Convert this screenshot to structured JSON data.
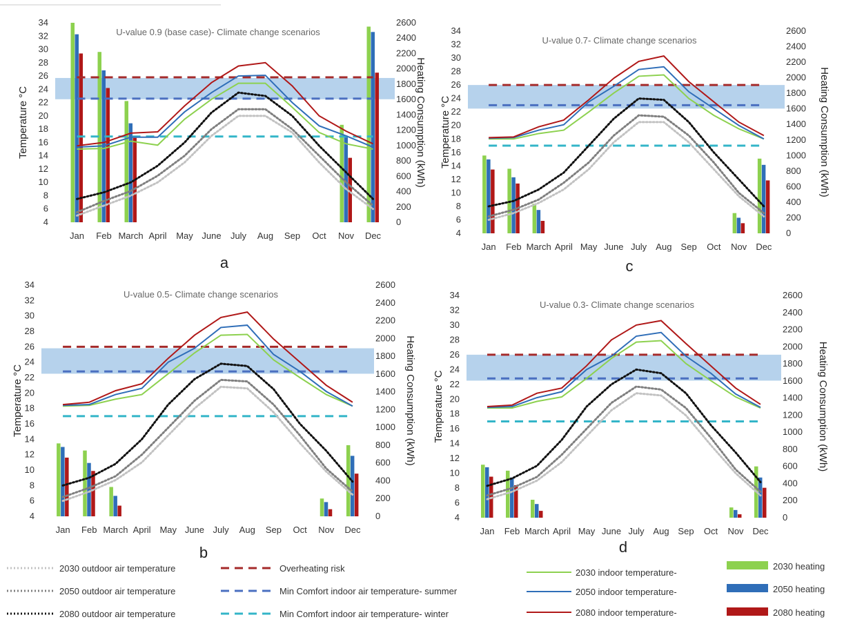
{
  "colors": {
    "green": "#8dd14f",
    "blue": "#2f6eb8",
    "red": "#b01818",
    "band": "#9dc3e6",
    "overheating": "#a52a2a",
    "comfort_summer": "#4a6fc0",
    "comfort_winter": "#33b5c8",
    "outdoor_2030": "#c2c2c2",
    "outdoor_2050": "#7f7f7f",
    "outdoor_2080": "#111111"
  },
  "legend": {
    "items": [
      {
        "label": "2030 outdoor air temperature",
        "key": "o30"
      },
      {
        "label": "2050 outdoor air temperature",
        "key": "o50"
      },
      {
        "label": "2080 outdoor air temperature",
        "key": "o80"
      },
      {
        "label": "Overheating risk",
        "key": "oh"
      },
      {
        "label": "Min Comfort indoor air temperature- summer",
        "key": "cs"
      },
      {
        "label": "Min Comfort indoor air temperature- winter",
        "key": "cw"
      },
      {
        "label": "2030  indoor temperature-",
        "key": "i30"
      },
      {
        "label": "2050  indoor temperature-",
        "key": "i50"
      },
      {
        "label": "2080   indoor temperature-",
        "key": "i80"
      },
      {
        "label": "2030 heating",
        "key": "h30"
      },
      {
        "label": "2050  heating",
        "key": "h50"
      },
      {
        "label": "2080  heating",
        "key": "h80"
      }
    ]
  },
  "chart_data": [
    {
      "type": "bar",
      "panel": "a",
      "title": "U-value 0.9  (base case)- Climate change scenarios",
      "ylabel": "Temperature °C",
      "y2label": "Heating Consumption (kWh)",
      "categories": [
        "Jan",
        "Feb",
        "March",
        "April",
        "May",
        "June",
        "July",
        "Aug",
        "Sep",
        "Oct",
        "Nov",
        "Dec"
      ],
      "y_ticks": [
        4,
        6,
        8,
        10,
        12,
        14,
        16,
        18,
        20,
        22,
        24,
        26,
        28,
        30,
        32,
        34
      ],
      "ylim": [
        4,
        34
      ],
      "y2_ticks": [
        0,
        200,
        400,
        600,
        800,
        1000,
        1200,
        1400,
        1600,
        1800,
        2000,
        2200,
        2400,
        2600
      ],
      "y2lim": [
        0,
        2600
      ],
      "comfort_band": [
        22.5,
        25.7
      ],
      "overheating_risk": 25.8,
      "min_comfort_summer": 22.6,
      "min_comfort_winter": 16.9,
      "heating": [
        {
          "name": "2030 heating",
          "values": [
            2600,
            2220,
            1580,
            0,
            0,
            0,
            0,
            0,
            0,
            0,
            1270,
            2550
          ]
        },
        {
          "name": "2050 heating",
          "values": [
            2450,
            1980,
            1290,
            0,
            0,
            0,
            0,
            0,
            0,
            0,
            1120,
            2480
          ]
        },
        {
          "name": "2080 heating",
          "values": [
            2200,
            1750,
            1100,
            0,
            0,
            0,
            0,
            0,
            0,
            0,
            840,
            1950
          ]
        }
      ],
      "indoor": [
        {
          "name": "2030  indoor temperature-",
          "values": [
            15.0,
            15.1,
            16.2,
            15.6,
            19.5,
            22.5,
            24.9,
            24.9,
            21.3,
            17.5,
            15.8,
            15.0
          ]
        },
        {
          "name": "2050  indoor temperature-",
          "values": [
            15.3,
            15.5,
            16.8,
            16.8,
            20.6,
            23.5,
            26.0,
            26.1,
            22.0,
            18.5,
            17.0,
            15.3
          ]
        },
        {
          "name": "2080   indoor temperature-",
          "values": [
            15.5,
            16.0,
            17.4,
            17.6,
            21.5,
            25.0,
            27.5,
            28.0,
            24.5,
            20.0,
            17.7,
            15.8
          ]
        }
      ],
      "outdoor": [
        {
          "name": "2030 outdoor air temperature",
          "values": [
            5.0,
            6.5,
            8.0,
            10.0,
            13.0,
            17.0,
            20.0,
            20.0,
            17.5,
            13.0,
            9.0,
            6.0
          ]
        },
        {
          "name": "2050 outdoor air temperature",
          "values": [
            5.5,
            7.2,
            8.7,
            11.0,
            14.0,
            18.0,
            21.0,
            21.0,
            18.0,
            14.0,
            10.0,
            6.5
          ]
        },
        {
          "name": "2080 outdoor air temperature",
          "values": [
            7.5,
            8.5,
            10.0,
            12.5,
            16.0,
            20.5,
            23.5,
            23.0,
            20.0,
            15.5,
            11.5,
            7.5
          ]
        }
      ]
    },
    {
      "type": "bar",
      "panel": "c",
      "title": "U-value 0.7- Climate change scenarios",
      "ylabel": "Temperature °C",
      "y2label": "Heating Consumption (kWh)",
      "categories": [
        "Jan",
        "Feb",
        "March",
        "April",
        "May",
        "June",
        "July",
        "Aug",
        "Sep",
        "Oct",
        "Nov",
        "Dec"
      ],
      "y_ticks": [
        4,
        6,
        8,
        10,
        12,
        14,
        16,
        18,
        20,
        22,
        24,
        26,
        28,
        30,
        32,
        34
      ],
      "ylim": [
        4,
        34
      ],
      "y2_ticks": [
        0,
        200,
        400,
        600,
        800,
        1000,
        1200,
        1400,
        1600,
        1800,
        2000,
        2200,
        2400,
        2600
      ],
      "y2lim": [
        0,
        2600
      ],
      "comfort_band": [
        22.5,
        26.0
      ],
      "overheating_risk": 26.0,
      "min_comfort_summer": 23.0,
      "min_comfort_winter": 17.0,
      "heating": [
        {
          "name": "2030 heating",
          "values": [
            1000,
            830,
            380,
            0,
            0,
            0,
            0,
            0,
            0,
            0,
            260,
            960
          ]
        },
        {
          "name": "2050 heating",
          "values": [
            950,
            720,
            300,
            0,
            0,
            0,
            0,
            0,
            0,
            0,
            200,
            880
          ]
        },
        {
          "name": "2080 heating",
          "values": [
            820,
            640,
            160,
            0,
            0,
            0,
            0,
            0,
            0,
            0,
            130,
            680
          ]
        }
      ],
      "indoor": [
        {
          "name": "2030  indoor temperature-",
          "values": [
            18.0,
            18.0,
            18.8,
            19.3,
            22.0,
            24.8,
            27.3,
            27.5,
            24.0,
            21.5,
            19.5,
            18.0
          ]
        },
        {
          "name": "2050  indoor temperature-",
          "values": [
            18.1,
            18.2,
            19.3,
            20.1,
            23.5,
            25.8,
            28.3,
            28.7,
            25.0,
            22.5,
            20.0,
            18.0
          ]
        },
        {
          "name": "2080   indoor temperature-",
          "values": [
            18.2,
            18.3,
            19.8,
            20.8,
            23.8,
            27.0,
            29.5,
            30.3,
            26.5,
            23.5,
            20.5,
            18.5
          ]
        }
      ],
      "outdoor": [
        {
          "name": "2030 outdoor air temperature",
          "values": [
            6.0,
            7.0,
            8.5,
            10.5,
            13.5,
            17.5,
            20.5,
            20.5,
            17.5,
            13.5,
            9.5,
            6.5
          ]
        },
        {
          "name": "2050 outdoor air temperature",
          "values": [
            6.5,
            7.5,
            9.0,
            11.5,
            14.5,
            18.5,
            21.5,
            21.3,
            18.5,
            14.5,
            10.0,
            7.0
          ]
        },
        {
          "name": "2080 outdoor air temperature",
          "values": [
            8.0,
            8.8,
            10.5,
            13.0,
            17.0,
            21.0,
            24.0,
            23.8,
            20.5,
            16.0,
            12.0,
            8.0
          ]
        }
      ]
    },
    {
      "type": "bar",
      "panel": "b",
      "title": "U-value 0.5- Climate change scenarios",
      "ylabel": "Temperature °C",
      "y2label": "Heating Consumption (kWh)",
      "categories": [
        "Jan",
        "Feb",
        "March",
        "April",
        "May",
        "June",
        "July",
        "Aug",
        "Sep",
        "Oct",
        "Nov",
        "Dec"
      ],
      "y_ticks": [
        4,
        6,
        8,
        10,
        12,
        14,
        16,
        18,
        20,
        22,
        24,
        26,
        28,
        30,
        32,
        34
      ],
      "ylim": [
        4,
        34
      ],
      "y2_ticks": [
        0,
        200,
        400,
        600,
        800,
        1000,
        1200,
        1400,
        1600,
        1800,
        2000,
        2200,
        2400,
        2600
      ],
      "y2lim": [
        0,
        2600
      ],
      "comfort_band": [
        22.5,
        25.8
      ],
      "overheating_risk": 26.0,
      "min_comfort_summer": 22.8,
      "min_comfort_winter": 17.0,
      "heating": [
        {
          "name": "2030 heating",
          "values": [
            820,
            740,
            330,
            0,
            0,
            0,
            0,
            0,
            0,
            0,
            200,
            800
          ]
        },
        {
          "name": "2050 heating",
          "values": [
            780,
            600,
            230,
            0,
            0,
            0,
            0,
            0,
            0,
            0,
            160,
            680
          ]
        },
        {
          "name": "2080 heating",
          "values": [
            660,
            510,
            120,
            0,
            0,
            0,
            0,
            0,
            0,
            0,
            80,
            480
          ]
        }
      ],
      "indoor": [
        {
          "name": "2030  indoor temperature-",
          "values": [
            18.3,
            18.4,
            19.2,
            19.8,
            22.5,
            25.2,
            27.5,
            27.6,
            24.3,
            22.0,
            19.8,
            18.3
          ]
        },
        {
          "name": "2050  indoor temperature-",
          "values": [
            18.4,
            18.5,
            19.8,
            20.6,
            24.0,
            25.8,
            28.5,
            28.8,
            25.0,
            22.8,
            20.2,
            18.3
          ]
        },
        {
          "name": "2080   indoor temperature-",
          "values": [
            18.5,
            18.8,
            20.3,
            21.2,
            24.5,
            27.5,
            29.8,
            30.5,
            27.0,
            24.0,
            21.0,
            18.8
          ]
        }
      ],
      "outdoor": [
        {
          "name": "2030 outdoor air temperature",
          "values": [
            6.0,
            7.2,
            8.7,
            11.0,
            14.5,
            18.0,
            20.8,
            20.6,
            17.5,
            13.5,
            9.8,
            6.8
          ]
        },
        {
          "name": "2050 outdoor air temperature",
          "values": [
            6.5,
            7.7,
            9.2,
            12.0,
            15.5,
            19.0,
            21.7,
            21.5,
            18.5,
            14.5,
            10.2,
            7.2
          ]
        },
        {
          "name": "2080 outdoor air temperature",
          "values": [
            8.0,
            9.0,
            10.8,
            14.0,
            18.5,
            21.8,
            23.8,
            23.5,
            20.5,
            16.0,
            12.5,
            8.5
          ]
        }
      ]
    },
    {
      "type": "bar",
      "panel": "d",
      "title": "U-value 0.3- Climate change scenarios",
      "ylabel": "Temperature °C",
      "y2label": "Heating Consumption (kWh)",
      "categories": [
        "Jan",
        "Feb",
        "March",
        "April",
        "May",
        "June",
        "July",
        "Aug",
        "Sep",
        "Oct",
        "Nov",
        "Dec"
      ],
      "y_ticks": [
        4,
        6,
        8,
        10,
        12,
        14,
        16,
        18,
        20,
        22,
        24,
        26,
        28,
        30,
        32,
        34
      ],
      "ylim": [
        4,
        34
      ],
      "y2_ticks": [
        0,
        200,
        400,
        600,
        800,
        1000,
        1200,
        1400,
        1600,
        1800,
        2000,
        2200,
        2400,
        2600
      ],
      "y2lim": [
        0,
        2600
      ],
      "comfort_band": [
        22.5,
        26.0
      ],
      "overheating_risk": 26.0,
      "min_comfort_summer": 22.8,
      "min_comfort_winter": 17.0,
      "heating": [
        {
          "name": "2030 heating",
          "values": [
            620,
            550,
            210,
            0,
            0,
            0,
            0,
            0,
            0,
            0,
            120,
            600
          ]
        },
        {
          "name": "2050 heating",
          "values": [
            590,
            470,
            160,
            0,
            0,
            0,
            0,
            0,
            0,
            0,
            90,
            470
          ]
        },
        {
          "name": "2080 heating",
          "values": [
            480,
            380,
            80,
            0,
            0,
            0,
            0,
            0,
            0,
            0,
            40,
            350
          ]
        }
      ],
      "indoor": [
        {
          "name": "2030  indoor temperature-",
          "values": [
            18.8,
            18.8,
            19.7,
            20.3,
            22.8,
            25.5,
            27.7,
            27.9,
            24.8,
            22.5,
            20.3,
            18.8
          ]
        },
        {
          "name": "2050  indoor temperature-",
          "values": [
            18.9,
            19.0,
            20.2,
            21.0,
            24.0,
            25.8,
            28.5,
            29.0,
            25.8,
            23.5,
            20.7,
            18.9
          ]
        },
        {
          "name": "2080   indoor temperature-",
          "values": [
            19.0,
            19.2,
            20.8,
            21.5,
            24.5,
            28.0,
            30.0,
            30.6,
            27.5,
            24.5,
            21.5,
            19.3
          ]
        }
      ],
      "outdoor": [
        {
          "name": "2030 outdoor air temperature",
          "values": [
            6.5,
            7.5,
            9.0,
            11.5,
            15.0,
            18.5,
            20.8,
            20.5,
            17.8,
            13.8,
            10.0,
            7.0
          ]
        },
        {
          "name": "2050 outdoor air temperature",
          "values": [
            7.0,
            8.0,
            9.5,
            12.5,
            16.0,
            19.5,
            21.7,
            21.3,
            18.8,
            14.8,
            10.5,
            7.5
          ]
        },
        {
          "name": "2080 outdoor air temperature",
          "values": [
            8.3,
            9.3,
            11.0,
            14.5,
            19.0,
            22.0,
            24.0,
            23.5,
            20.8,
            16.5,
            12.8,
            8.8
          ]
        }
      ]
    }
  ]
}
